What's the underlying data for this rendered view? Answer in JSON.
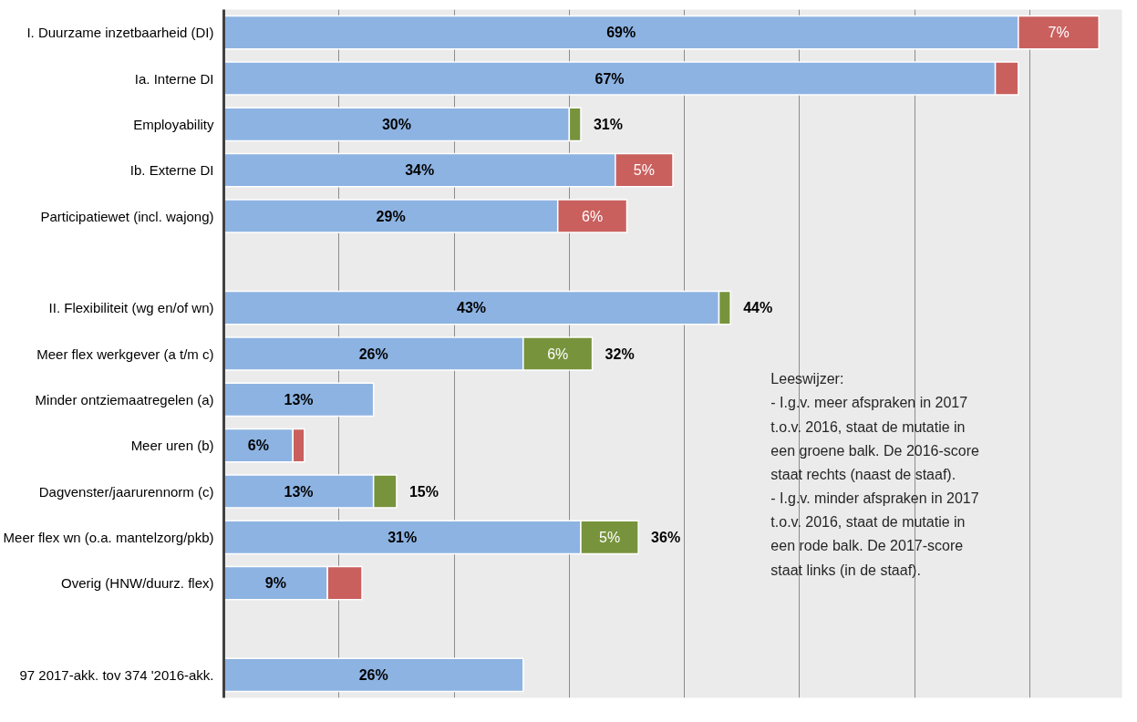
{
  "chart_data": {
    "type": "bar",
    "orientation": "horizontal",
    "stacked": true,
    "categories": [
      "I. Duurzame inzetbaarheid (DI)",
      "Ia. Interne DI",
      "Employability",
      "Ib. Externe DI",
      "Participatiewet (incl. wajong)",
      null,
      "II. Flexibiliteit (wg en/of wn)",
      "Meer flex werkgever (a t/m c)",
      "Minder ontziemaatregelen (a)",
      "Meer uren (b)",
      "Dagvenster/jaarurennorm (c)",
      "Meer flex wn (o.a. mantelzorg/pkb)",
      "Overig (HNW/duurz. flex)",
      null,
      "97 2017-akk. tov 374 '2016-akk."
    ],
    "series": [
      {
        "color": "#8db3e2",
        "values": [
          69,
          67,
          30,
          34,
          29,
          null,
          43,
          26,
          13,
          6,
          13,
          31,
          9,
          null,
          26
        ],
        "value_labels": [
          "69%",
          "67%",
          "30%",
          "34%",
          "29%",
          null,
          "43%",
          "26%",
          "13%",
          "6%",
          "13%",
          "31%",
          "9%",
          null,
          "26%"
        ]
      },
      {
        "color": "#77933c",
        "values": [
          null,
          null,
          1,
          null,
          null,
          null,
          1,
          6,
          null,
          null,
          2,
          5,
          null,
          null,
          null
        ],
        "value_labels": [
          null,
          null,
          null,
          null,
          null,
          null,
          null,
          "6%",
          null,
          null,
          null,
          "5%",
          null,
          null,
          null
        ]
      },
      {
        "color": "#c9605e",
        "values": [
          7,
          2,
          null,
          5,
          6,
          null,
          null,
          null,
          null,
          1,
          null,
          null,
          3,
          null,
          null
        ],
        "value_labels": [
          "7%",
          null,
          null,
          "5%",
          "6%",
          null,
          null,
          null,
          null,
          null,
          null,
          null,
          null,
          null,
          null
        ]
      }
    ],
    "totals": [
      null,
      null,
      "31%",
      null,
      null,
      null,
      "44%",
      "32%",
      null,
      null,
      "15%",
      "36%",
      null,
      null,
      null
    ],
    "xlim": [
      0,
      78
    ],
    "xticks": [
      {
        "value": 10,
        "label": null
      },
      {
        "value": 20,
        "label": null
      },
      {
        "value": 30,
        "label": null
      },
      {
        "value": 40,
        "label": null
      },
      {
        "value": 50,
        "label": null
      },
      {
        "value": 60,
        "label": null
      },
      {
        "value": 70,
        "label": null
      }
    ],
    "tick_labels": "y",
    "grid": "x",
    "annotations": [
      "Leeswijzer:\n- I.g.v. meer afspraken in 2017\nt.o.v.  2016, staat de mutatie in\neen groene balk. De 2016-score\nstaat rechts (naast de staaf).\n- I.g.v. minder afspraken in 2017\nt.o.v.  2016, staat de mutatie in\neen rode balk. De 2017-score\nstaat links (in de staaf)."
    ]
  }
}
